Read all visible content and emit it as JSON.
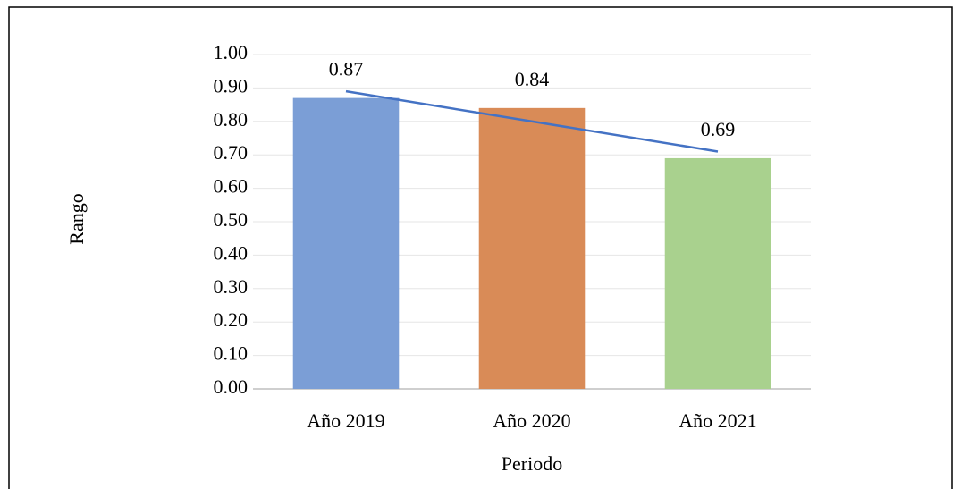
{
  "chart_data": {
    "type": "bar",
    "x_label": "Periodo",
    "y_label": "Rango",
    "categories": [
      "Año 2019",
      "Año 2020",
      "Año 2021"
    ],
    "values": [
      0.87,
      0.84,
      0.69
    ],
    "value_labels": [
      "0.87",
      "0.84",
      "0.69"
    ],
    "colors": [
      "#7b9ed6",
      "#d98b57",
      "#a9d18e"
    ],
    "trendline": "linear",
    "trendline_color": "#4472c4",
    "ylim": [
      0,
      1
    ],
    "yticks": [
      {
        "value": 0,
        "label": "0.00"
      },
      {
        "value": 0.1,
        "label": "0.10"
      },
      {
        "value": 0.2,
        "label": "0.20"
      },
      {
        "value": 0.3,
        "label": "0.30"
      },
      {
        "value": 0.4,
        "label": "0.40"
      },
      {
        "value": 0.5,
        "label": "0.50"
      },
      {
        "value": 0.6,
        "label": "0.60"
      },
      {
        "value": 0.7,
        "label": "0.70"
      },
      {
        "value": 0.8,
        "label": "0.80"
      },
      {
        "value": 0.9,
        "label": "0.90"
      },
      {
        "value": 1,
        "label": "1.00"
      }
    ],
    "grid": true
  }
}
